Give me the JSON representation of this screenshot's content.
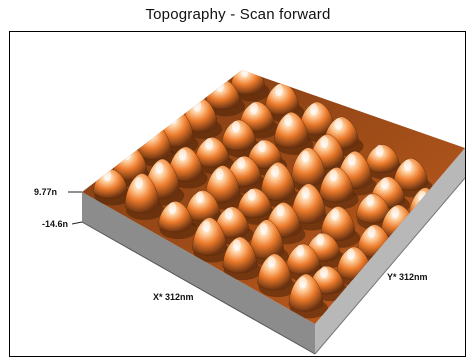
{
  "window": {
    "title": "Topography - Scan forward"
  },
  "plot": {
    "z_max_label": "9.77n",
    "z_min_label": "-14.6n",
    "x_axis_label": "X* 312nm",
    "y_axis_label": "Y* 312nm",
    "colors": {
      "surface_dark": "#5a2a08",
      "surface_mid": "#e8782a",
      "surface_light": "#ffc08a",
      "highlight": "#f4f4f4",
      "base_side": "#8a8a8a",
      "base_front": "#b5b5b5"
    }
  }
}
